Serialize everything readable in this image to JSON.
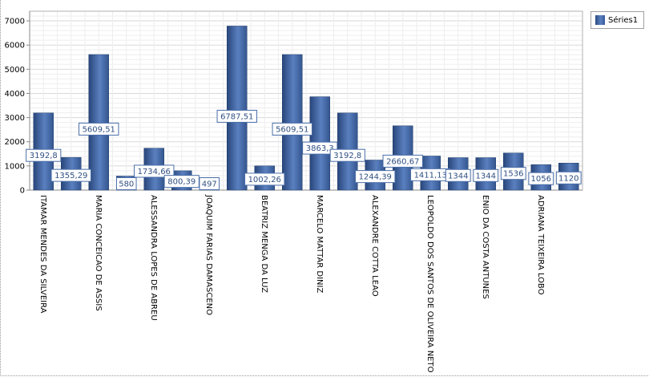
{
  "chart_data": {
    "type": "bar",
    "categories": [
      "ITAMAR MENDES DA SILVEIRA",
      "",
      "MARIA CONCEICAO DE ASSIS",
      "",
      "ALESSANDRA LOPES DE ABREU",
      "",
      "JOAQUIM FARIAS DAMASCENO",
      "",
      "BEATRIZ MENGA DA LUZ",
      "",
      "MARCELO MATTAR DINIZ",
      "",
      "ALEXANDRE COTTA LEAO",
      "",
      "LEOPOLDO DOS SANTOS DE OLIVEIRA NETO",
      "",
      "ENIO DA COSTA ANTUNES",
      "",
      "ADRIANA TEIXEIRA LOBO",
      ""
    ],
    "series": [
      {
        "name": "Séries1",
        "values": [
          3192.8,
          1355.29,
          5609.51,
          580,
          1734.66,
          800.39,
          497,
          6787.51,
          1002.26,
          5609.51,
          3863.3,
          3192.8,
          1244.39,
          2660.67,
          1411.13,
          1344,
          1344,
          1536,
          1056,
          1120
        ],
        "labels": [
          "3192,8",
          "1355,29",
          "5609,51",
          "580",
          "1734,66",
          "800,39",
          "497",
          "6787,51",
          "1002,26",
          "5609,51",
          "3863,3",
          "3192,8",
          "1244,39",
          "2660,67",
          "1411,13",
          "1344",
          "1344",
          "1536",
          "1056",
          "1120"
        ]
      }
    ],
    "y_ticks": [
      "0",
      "1000",
      "2000",
      "3000",
      "4000",
      "5000",
      "6000",
      "7000"
    ],
    "ylim": [
      0,
      7400
    ],
    "grid": true,
    "legend_position": "top-right",
    "bar_color": "#3d62a0",
    "label_color": "#2f4f82"
  }
}
